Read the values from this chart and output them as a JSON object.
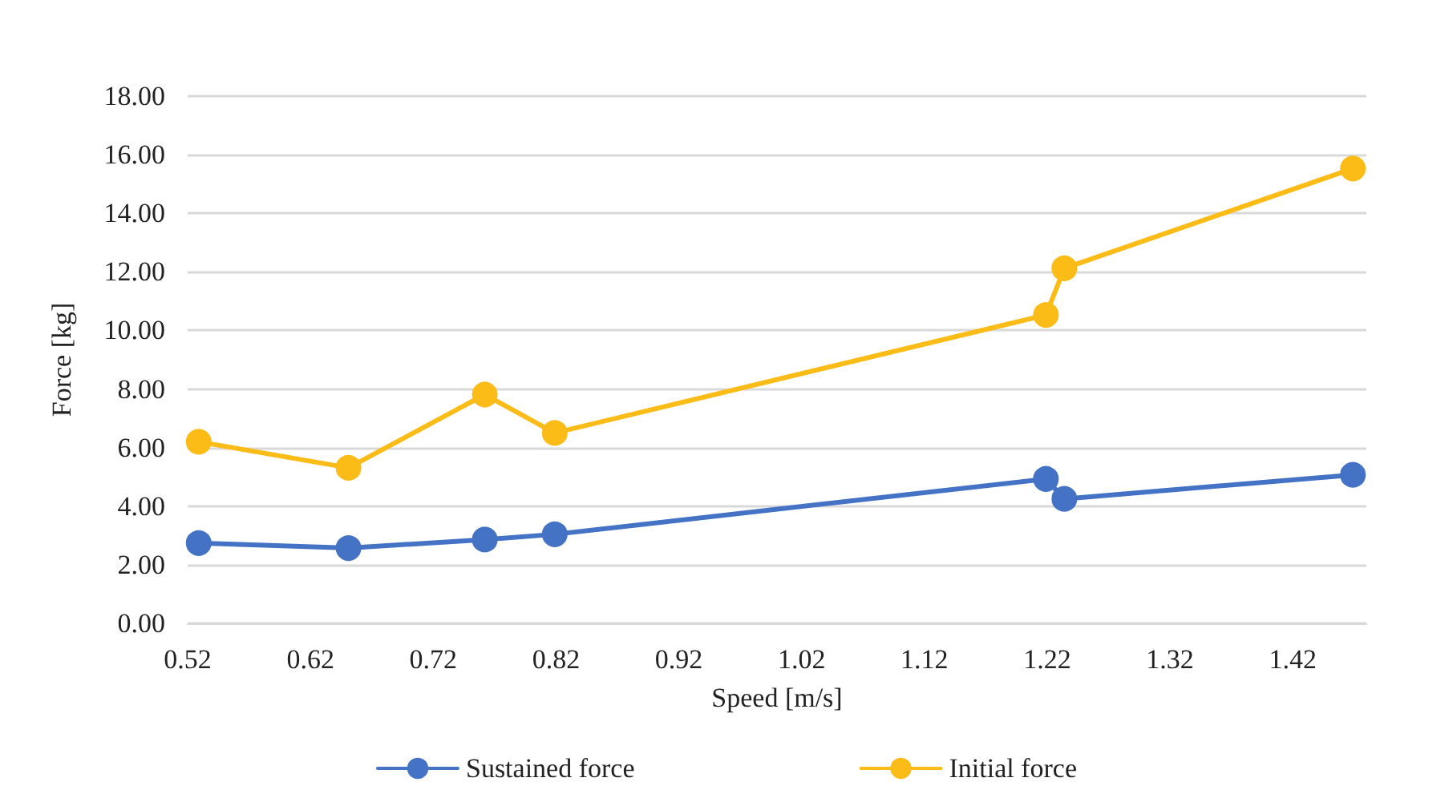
{
  "chart_data": {
    "type": "line",
    "xlabel": "Speed [m/s]",
    "ylabel": "Force [kg]",
    "x": [
      0.529,
      0.651,
      0.762,
      0.819,
      1.219,
      1.234,
      1.469
    ],
    "series": [
      {
        "name": "Sustained force",
        "color": "#4472c4",
        "values": [
          2.74,
          2.57,
          2.86,
          3.04,
          4.93,
          4.25,
          5.07
        ]
      },
      {
        "name": "Initial force",
        "color": "#fbbc18",
        "values": [
          6.2,
          5.31,
          7.81,
          6.5,
          10.53,
          12.12,
          15.53
        ]
      }
    ],
    "xlim": [
      0.52,
      1.48
    ],
    "xticks": [
      0.52,
      0.62,
      0.72,
      0.82,
      0.92,
      1.02,
      1.12,
      1.22,
      1.32,
      1.42
    ],
    "ylim": [
      0,
      18
    ],
    "yticks": [
      {
        "value": 0,
        "label": "0.00"
      },
      {
        "value": 2,
        "label": "2.00"
      },
      {
        "value": 4,
        "label": "4.00"
      },
      {
        "value": 6,
        "label": "6.00"
      },
      {
        "value": 8,
        "label": "8.00"
      },
      {
        "value": 10,
        "label": "10.00"
      },
      {
        "value": 12,
        "label": "12.00"
      },
      {
        "value": 14,
        "label": "14.00"
      },
      {
        "value": 16,
        "label": "16.00"
      },
      {
        "value": 18,
        "label": "18.00"
      }
    ],
    "grid": "y",
    "legend": "bottom",
    "marker": "circle",
    "line_style": "solid"
  }
}
